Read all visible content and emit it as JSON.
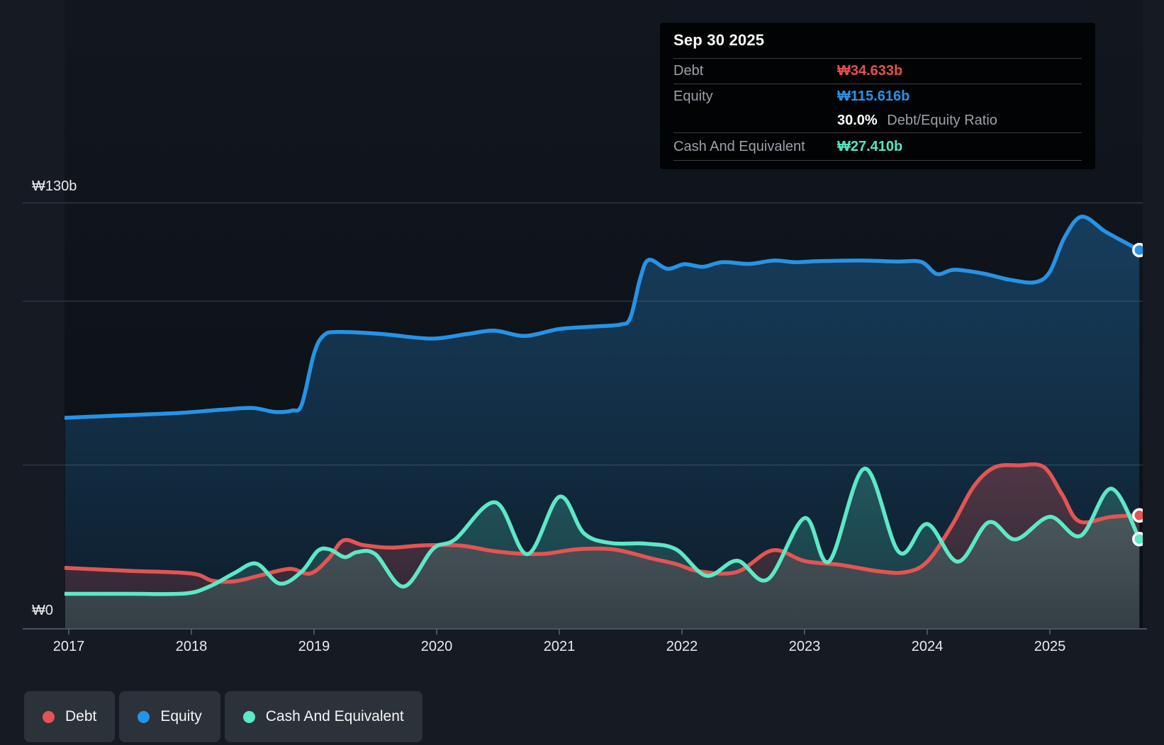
{
  "tooltip": {
    "title": "Sep 30 2025",
    "debt_label": "Debt",
    "debt_value": "₩34.633b",
    "equity_label": "Equity",
    "equity_value": "₩115.616b",
    "ratio_value": "30.0%",
    "ratio_label": "Debt/Equity Ratio",
    "cash_label": "Cash And Equivalent",
    "cash_value": "₩27.410b"
  },
  "legend": {
    "items": [
      {
        "label": "Debt",
        "color": "#e45454"
      },
      {
        "label": "Equity",
        "color": "#2693e6"
      },
      {
        "label": "Cash And Equivalent",
        "color": "#5de8c6"
      }
    ]
  },
  "colors": {
    "debt": "#e45454",
    "equity": "#2693e6",
    "cash": "#5de8c6",
    "grid": "#333c47",
    "axis": "#4a5360",
    "axis_label": "#e9ebee",
    "plot_bg_top": "#12171f",
    "plot_bg_bottom": "#0b1016",
    "marker_ring": "#ffffff"
  },
  "chart_data": {
    "type": "area",
    "title": "Debt to Equity History",
    "unit": "₩ billions (KRW)",
    "ylim": [
      0,
      130
    ],
    "y_gridline_values_b": [
      50,
      100,
      130
    ],
    "y_top_label": "₩130b",
    "y_zero_label": "₩0",
    "x_tick_years": [
      "2017",
      "2018",
      "2019",
      "2020",
      "2021",
      "2022",
      "2023",
      "2024",
      "2025"
    ],
    "x_range_years": [
      2016.97,
      2025.75
    ],
    "legend_position": "bottom-left",
    "grid": "on",
    "last_point": {
      "date": "Sep 30 2025",
      "debt_b": 34.633,
      "equity_b": 115.616,
      "cash_b": 27.41,
      "debt_equity_ratio_pct": 30.0
    },
    "series": [
      {
        "name": "Equity",
        "color": "#2693e6",
        "points": [
          [
            2016.97,
            64.4
          ],
          [
            2017.4,
            65.1
          ],
          [
            2017.9,
            65.9
          ],
          [
            2018.25,
            66.9
          ],
          [
            2018.5,
            67.4
          ],
          [
            2018.68,
            66.2
          ],
          [
            2018.82,
            66.6
          ],
          [
            2018.9,
            68.5
          ],
          [
            2019.0,
            84.0
          ],
          [
            2019.08,
            89.6
          ],
          [
            2019.2,
            90.6
          ],
          [
            2019.55,
            90.0
          ],
          [
            2019.95,
            88.6
          ],
          [
            2020.25,
            90.0
          ],
          [
            2020.47,
            91.0
          ],
          [
            2020.72,
            89.4
          ],
          [
            2021.0,
            91.5
          ],
          [
            2021.3,
            92.3
          ],
          [
            2021.5,
            92.9
          ],
          [
            2021.58,
            95.0
          ],
          [
            2021.66,
            107.0
          ],
          [
            2021.73,
            112.6
          ],
          [
            2021.88,
            109.9
          ],
          [
            2022.02,
            111.3
          ],
          [
            2022.17,
            110.5
          ],
          [
            2022.33,
            111.9
          ],
          [
            2022.55,
            111.4
          ],
          [
            2022.75,
            112.4
          ],
          [
            2022.92,
            111.9
          ],
          [
            2023.1,
            112.2
          ],
          [
            2023.45,
            112.4
          ],
          [
            2023.75,
            112.1
          ],
          [
            2023.95,
            112.0
          ],
          [
            2024.08,
            108.3
          ],
          [
            2024.22,
            109.6
          ],
          [
            2024.45,
            108.5
          ],
          [
            2024.68,
            106.5
          ],
          [
            2024.88,
            105.8
          ],
          [
            2025.0,
            109.0
          ],
          [
            2025.12,
            119.5
          ],
          [
            2025.26,
            125.8
          ],
          [
            2025.45,
            121.3
          ],
          [
            2025.6,
            118.2
          ],
          [
            2025.73,
            115.616
          ]
        ]
      },
      {
        "name": "Debt",
        "color": "#e45454",
        "points": [
          [
            2016.97,
            18.6
          ],
          [
            2017.5,
            17.7
          ],
          [
            2018.0,
            16.9
          ],
          [
            2018.17,
            14.7
          ],
          [
            2018.35,
            14.5
          ],
          [
            2018.55,
            16.2
          ],
          [
            2018.8,
            18.3
          ],
          [
            2018.97,
            16.9
          ],
          [
            2019.12,
            21.5
          ],
          [
            2019.24,
            27.0
          ],
          [
            2019.4,
            25.6
          ],
          [
            2019.62,
            24.8
          ],
          [
            2019.9,
            25.5
          ],
          [
            2020.2,
            25.4
          ],
          [
            2020.45,
            23.8
          ],
          [
            2020.7,
            22.9
          ],
          [
            2020.9,
            23.0
          ],
          [
            2021.15,
            24.3
          ],
          [
            2021.45,
            24.2
          ],
          [
            2021.75,
            21.5
          ],
          [
            2021.95,
            19.8
          ],
          [
            2022.15,
            17.5
          ],
          [
            2022.45,
            17.4
          ],
          [
            2022.74,
            24.0
          ],
          [
            2023.0,
            20.7
          ],
          [
            2023.3,
            19.5
          ],
          [
            2023.6,
            17.6
          ],
          [
            2023.82,
            17.3
          ],
          [
            2024.0,
            20.5
          ],
          [
            2024.2,
            31.5
          ],
          [
            2024.38,
            43.5
          ],
          [
            2024.55,
            49.3
          ],
          [
            2024.75,
            49.9
          ],
          [
            2024.95,
            49.4
          ],
          [
            2025.1,
            41.0
          ],
          [
            2025.24,
            32.8
          ],
          [
            2025.5,
            34.2
          ],
          [
            2025.73,
            34.633
          ]
        ]
      },
      {
        "name": "Cash And Equivalent",
        "color": "#5de8c6",
        "points": [
          [
            2016.97,
            10.7
          ],
          [
            2017.5,
            10.7
          ],
          [
            2017.95,
            10.8
          ],
          [
            2018.15,
            13.0
          ],
          [
            2018.35,
            17.0
          ],
          [
            2018.53,
            19.9
          ],
          [
            2018.72,
            13.8
          ],
          [
            2018.9,
            17.5
          ],
          [
            2019.03,
            23.8
          ],
          [
            2019.13,
            24.2
          ],
          [
            2019.25,
            21.9
          ],
          [
            2019.35,
            23.4
          ],
          [
            2019.5,
            22.8
          ],
          [
            2019.73,
            12.9
          ],
          [
            2019.97,
            24.4
          ],
          [
            2020.15,
            27.3
          ],
          [
            2020.48,
            38.6
          ],
          [
            2020.74,
            22.8
          ],
          [
            2021.0,
            40.3
          ],
          [
            2021.2,
            29.2
          ],
          [
            2021.42,
            26.2
          ],
          [
            2021.7,
            26.0
          ],
          [
            2021.95,
            24.3
          ],
          [
            2022.2,
            16.2
          ],
          [
            2022.45,
            20.8
          ],
          [
            2022.7,
            15.1
          ],
          [
            2023.0,
            33.8
          ],
          [
            2023.2,
            20.6
          ],
          [
            2023.49,
            48.9
          ],
          [
            2023.77,
            23.4
          ],
          [
            2024.0,
            32.0
          ],
          [
            2024.25,
            20.5
          ],
          [
            2024.5,
            32.5
          ],
          [
            2024.72,
            27.3
          ],
          [
            2025.0,
            34.2
          ],
          [
            2025.25,
            28.4
          ],
          [
            2025.5,
            42.8
          ],
          [
            2025.73,
            27.41
          ]
        ]
      }
    ]
  }
}
